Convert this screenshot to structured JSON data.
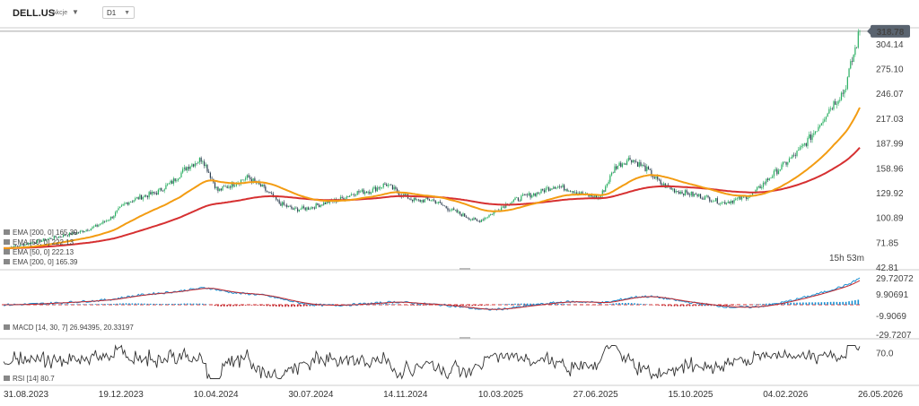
{
  "header": {
    "symbol": "DELL.US",
    "symbol_type": "Akcje",
    "timeframe": "D1"
  },
  "countdown": "15h 53m",
  "chart_data": {
    "type": "candlestick",
    "last_price": "318.78",
    "y_ticks": [
      "304.14",
      "275.10",
      "246.07",
      "217.03",
      "187.99",
      "158.96",
      "129.92",
      "100.89",
      "71.85",
      "42.81"
    ],
    "y_tick_values": [
      304.14,
      275.1,
      246.07,
      217.03,
      187.99,
      158.96,
      129.92,
      100.89,
      71.85,
      42.81
    ],
    "x_ticks": [
      "31.08.2023",
      "19.12.2023",
      "10.04.2024",
      "30.07.2024",
      "14.11.2024",
      "10.03.2025",
      "27.06.2025",
      "15.10.2025",
      "04.02.2026",
      "26.05.2026"
    ],
    "price_path": [
      65,
      68,
      72,
      76,
      80,
      84,
      90,
      100,
      118,
      125,
      130,
      142,
      160,
      170,
      132,
      140,
      148,
      135,
      118,
      110,
      112,
      118,
      122,
      130,
      132,
      140,
      128,
      120,
      122,
      112,
      104,
      96,
      106,
      118,
      125,
      130,
      138,
      134,
      127,
      124,
      160,
      170,
      158,
      140,
      132,
      128,
      124,
      118,
      122,
      128,
      146,
      162,
      178,
      200,
      228,
      250,
      318.78
    ],
    "ema_fast_label": "EMA [50, 0] 222.13",
    "ema_slow_label": "EMA [200, 0] 165.39",
    "legend_top": [
      "EMA [200, 0] 165.39",
      "EMA [50, 0] 222.13"
    ],
    "legend_bottom": [
      "EMA [50, 0] 222.13",
      "EMA [200, 0] 165.39"
    ],
    "colors": {
      "ema_fast": "#f39c12",
      "ema_slow": "#d63031",
      "up": "#27ae60",
      "down": "#2c3e50",
      "macd_pos": "#1a8fd1",
      "macd_neg": "#c0262d",
      "rsi": "#333333"
    }
  },
  "macd": {
    "label": "MACD [14, 30, 7] 26.94395, 20.33197",
    "ticks": [
      "29.72072",
      "9.90691",
      "-9.9069",
      "-29.7207"
    ]
  },
  "rsi": {
    "label": "RSI [14] 80.7",
    "ticks": [
      "70.0"
    ]
  }
}
